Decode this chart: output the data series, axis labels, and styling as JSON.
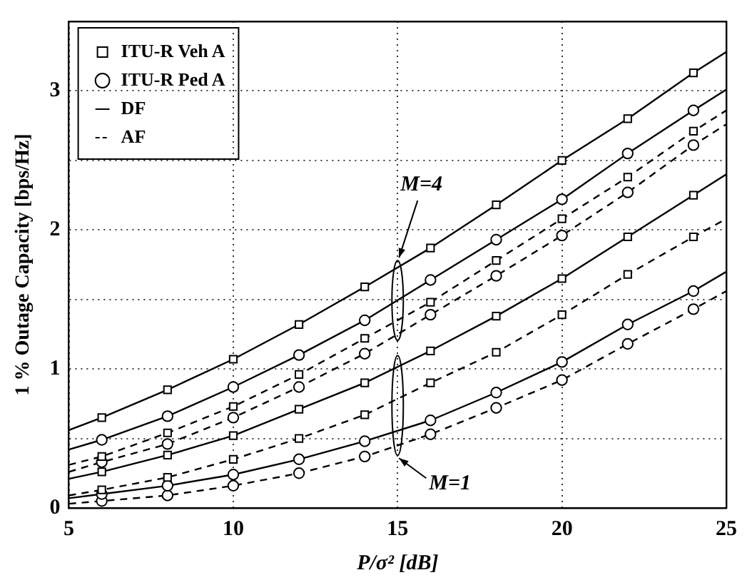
{
  "chart_data": {
    "type": "line",
    "xlabel": "P/σ² [dB]",
    "ylabel": "1 % Outage Capacity [bps/Hz]",
    "x": [
      5,
      6,
      8,
      10,
      12,
      14,
      16,
      18,
      20,
      22,
      24,
      25
    ],
    "xlim": [
      5,
      25
    ],
    "xticks": [
      5,
      10,
      15,
      20,
      25
    ],
    "ylim": [
      0,
      3.5
    ],
    "yticks": [
      0,
      {
        "value": 0.5,
        "label": null
      },
      1,
      {
        "value": 1.5,
        "label": null
      },
      2,
      {
        "value": 2.5,
        "label": null
      },
      3
    ],
    "grid": true,
    "legend": "top left",
    "series": [
      {
        "name": "ITU-R Veh A",
        "color": "#000000",
        "marker": "square",
        "line_style": "none",
        "values": [
          null,
          null,
          null,
          null,
          null,
          null,
          null,
          null,
          null,
          null,
          null,
          null
        ]
      },
      {
        "name": "ITU-R Ped A",
        "color": "#000000",
        "marker": "circle",
        "line_style": "none",
        "values": [
          null,
          null,
          null,
          null,
          null,
          null,
          null,
          null,
          null,
          null,
          null,
          null
        ]
      },
      {
        "name": "DF",
        "color": "#000000",
        "marker": "none",
        "line_style": "solid",
        "values": [
          null,
          null,
          null,
          null,
          null,
          null,
          null,
          null,
          null,
          null,
          null,
          null
        ]
      },
      {
        "name": "AF",
        "color": "#000000",
        "marker": "none",
        "line_style": "dashed",
        "values": [
          null,
          null,
          null,
          null,
          null,
          null,
          null,
          null,
          null,
          null,
          null,
          null
        ]
      },
      {
        "color": "#000000",
        "marker": "square",
        "line_style": "solid",
        "values": [
          0.56,
          0.65,
          0.85,
          1.07,
          1.32,
          1.59,
          1.87,
          2.18,
          2.5,
          2.8,
          3.13,
          3.28
        ]
      },
      {
        "color": "#000000",
        "marker": "circle",
        "line_style": "solid",
        "values": [
          0.42,
          0.49,
          0.66,
          0.87,
          1.1,
          1.35,
          1.64,
          1.93,
          2.22,
          2.55,
          2.86,
          3.01
        ]
      },
      {
        "color": "#000000",
        "marker": "square",
        "line_style": "dashed",
        "values": [
          0.31,
          0.37,
          0.54,
          0.73,
          0.96,
          1.22,
          1.48,
          1.78,
          2.08,
          2.38,
          2.71,
          2.86
        ]
      },
      {
        "color": "#000000",
        "marker": "circle",
        "line_style": "dashed",
        "values": [
          0.26,
          0.33,
          0.46,
          0.65,
          0.87,
          1.11,
          1.39,
          1.67,
          1.96,
          2.27,
          2.61,
          2.76
        ]
      },
      {
        "color": "#000000",
        "marker": "square",
        "line_style": "solid",
        "values": [
          0.21,
          0.26,
          0.38,
          0.52,
          0.71,
          0.9,
          1.13,
          1.38,
          1.65,
          1.95,
          2.25,
          2.4
        ]
      },
      {
        "color": "#000000",
        "marker": "square",
        "line_style": "dashed",
        "values": [
          0.09,
          0.13,
          0.22,
          0.35,
          0.5,
          0.67,
          0.9,
          1.12,
          1.39,
          1.68,
          1.95,
          2.08
        ]
      },
      {
        "color": "#000000",
        "marker": "circle",
        "line_style": "solid",
        "values": [
          0.07,
          0.1,
          0.16,
          0.24,
          0.35,
          0.48,
          0.63,
          0.83,
          1.05,
          1.32,
          1.56,
          1.7
        ]
      },
      {
        "color": "#000000",
        "marker": "circle",
        "line_style": "dashed",
        "values": [
          0.03,
          0.05,
          0.09,
          0.16,
          0.25,
          0.37,
          0.53,
          0.72,
          0.92,
          1.18,
          1.43,
          1.56
        ]
      }
    ],
    "annotations": [
      {
        "text": "M=4",
        "x": 15,
        "y": 1.78
      },
      {
        "text": "M=1",
        "x": 15,
        "y": 0.45
      }
    ]
  }
}
